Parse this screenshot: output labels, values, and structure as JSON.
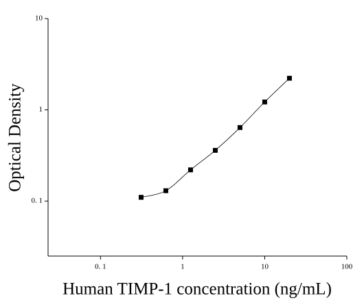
{
  "chart_data": {
    "type": "scatter",
    "xlabel": "Human TIMP-1 concentration (ng/mL)",
    "ylabel": "Optical Density",
    "x": [
      0.3125,
      0.625,
      1.25,
      2.5,
      5,
      10,
      20
    ],
    "values": [
      0.11,
      0.13,
      0.22,
      0.36,
      0.64,
      1.22,
      2.22
    ],
    "color": "#000000",
    "xscale": "log",
    "yscale": "log",
    "xlim": [
      0.023,
      100
    ],
    "ylim": [
      0.025,
      10
    ],
    "xticks": [
      {
        "value": 0.1,
        "label": "0. 1"
      },
      1,
      10,
      100
    ],
    "yticks": [
      {
        "value": 0.1,
        "label": "0. 1"
      },
      1,
      10
    ],
    "fit_line": true
  }
}
